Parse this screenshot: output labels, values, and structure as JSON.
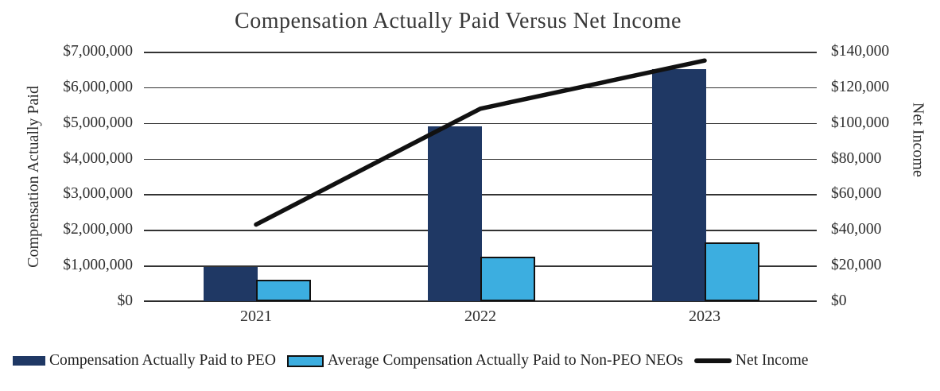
{
  "chart_data": {
    "type": "combo-bar-line",
    "title": "Compensation Actually Paid Versus Net Income",
    "categories": [
      "2021",
      "2022",
      "2023"
    ],
    "series": [
      {
        "name": "Compensation Actually Paid to PEO",
        "type": "bar",
        "axis": "left",
        "color": "#1F3864",
        "values": [
          950000,
          4900000,
          6500000
        ]
      },
      {
        "name": "Average Compensation Actually Paid to Non-PEO NEOs",
        "type": "bar",
        "axis": "left",
        "color": "#3CAEE0",
        "border_color": "#111111",
        "values": [
          600000,
          1250000,
          1650000
        ]
      },
      {
        "name": "Net Income",
        "type": "line",
        "axis": "right",
        "color": "#111111",
        "values": [
          43000,
          108000,
          135000
        ]
      }
    ],
    "left_axis": {
      "label": "Compensation Actually Paid",
      "min": 0,
      "max": 7000000,
      "tick_step": 1000000,
      "ticks": [
        "$7,000,000",
        "$6,000,000",
        "$5,000,000",
        "$4,000,000",
        "$3,000,000",
        "$2,000,000",
        "$1,000,000",
        "$0"
      ]
    },
    "right_axis": {
      "label": "Net Income",
      "min": 0,
      "max": 140000,
      "tick_step": 20000,
      "ticks": [
        "$140,000",
        "$120,000",
        "$100,000",
        "$80,000",
        "$60,000",
        "$40,000",
        "$20,000",
        "$0"
      ]
    },
    "grid": true,
    "legend_position": "bottom"
  }
}
